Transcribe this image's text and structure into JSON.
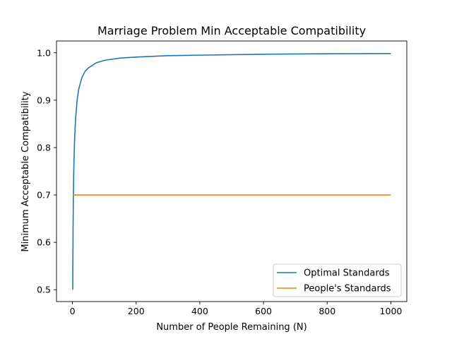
{
  "chart_data": {
    "type": "line",
    "title": "Marriage Problem Min Acceptable Compatibility",
    "xlabel": "Number of People Remaining (N)",
    "ylabel": "Minimum Acceptable Compatibility",
    "xlim": [
      -50,
      1050
    ],
    "ylim": [
      0.475,
      1.025
    ],
    "xticks": [
      0,
      200,
      400,
      600,
      800,
      1000
    ],
    "yticks": [
      0.5,
      0.6,
      0.7,
      0.8,
      0.9,
      1.0
    ],
    "xtick_labels": [
      "0",
      "200",
      "400",
      "600",
      "800",
      "1000"
    ],
    "ytick_labels": [
      "0.5",
      "0.6",
      "0.7",
      "0.8",
      "0.9",
      "1.0"
    ],
    "grid": false,
    "legend_position": "lower-right",
    "series": [
      {
        "name": "Optimal Standards",
        "color": "#1f77b4",
        "x": [
          1,
          2,
          3,
          4,
          5,
          7,
          10,
          15,
          20,
          30,
          40,
          50,
          75,
          100,
          150,
          200,
          300,
          400,
          500,
          600,
          700,
          800,
          900,
          1000
        ],
        "y": [
          0.5,
          0.625,
          0.695,
          0.742,
          0.775,
          0.82,
          0.861,
          0.902,
          0.924,
          0.948,
          0.961,
          0.968,
          0.979,
          0.984,
          0.989,
          0.991,
          0.994,
          0.995,
          0.996,
          0.997,
          0.9975,
          0.998,
          0.9982,
          0.9985
        ]
      },
      {
        "name": "People's Standards",
        "color": "#ff7f0e",
        "x": [
          1,
          1000
        ],
        "y": [
          0.7,
          0.7
        ]
      }
    ]
  }
}
